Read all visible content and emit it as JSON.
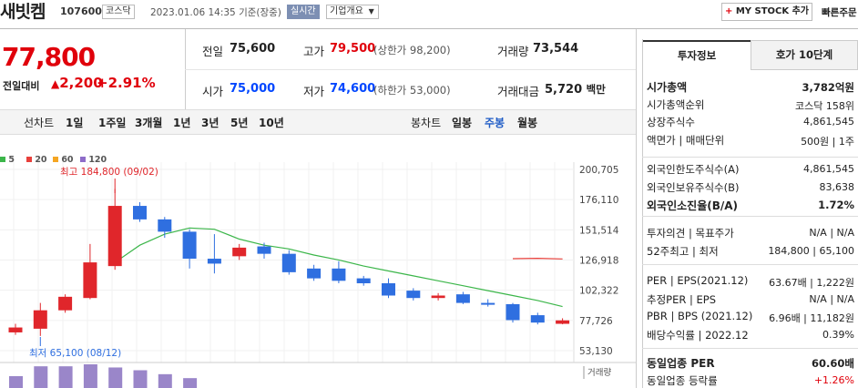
{
  "header": {
    "name": "새빗켐",
    "code": "107600",
    "market": "코스닥",
    "datetime": "2023.01.06 14:35",
    "basis": "기준(장중)",
    "live": "실시간",
    "overview": "기업개요",
    "mystock": "MY STOCK 추가",
    "quick": "빠른주문"
  },
  "price": {
    "current": "77,800",
    "change_label": "전일대비",
    "change": "2,200",
    "change_pct": "+2.91%"
  },
  "quote": {
    "prev_label": "전일",
    "prev": "75,600",
    "high_label": "고가",
    "high": "79,500",
    "upper_limit": "(상한가 98,200)",
    "volume_label": "거래량",
    "volume": "73,544",
    "open_label": "시가",
    "open": "75,000",
    "low_label": "저가",
    "low": "74,600",
    "lower_limit": "(하한가 53,000)",
    "amount_label": "거래대금",
    "amount": "5,720",
    "amount_unit": "백만"
  },
  "tabs": {
    "line_label": "선차트",
    "line": [
      "1일",
      "1주일",
      "3개월",
      "1년",
      "3년",
      "5년",
      "10년"
    ],
    "candle_label": "봉차트",
    "candle": [
      "일봉",
      "주봉",
      "월봉"
    ],
    "selected": "주봉"
  },
  "chart_data": {
    "type": "candlestick",
    "legend": [
      "5",
      "20",
      "60",
      "120"
    ],
    "legend_colors": [
      "#3cb64a",
      "#e8403b",
      "#f5a623",
      "#8e6cc9"
    ],
    "y_ticks": [
      "200,705",
      "176,110",
      "151,514",
      "126,918",
      "102,322",
      "77,726",
      "53,130"
    ],
    "ylim": [
      53130,
      200705
    ],
    "high_note": "최고 184,800 (09/02)",
    "low_note": "최저 65,100 (08/12)",
    "volume_label": "거래량",
    "candles": [
      {
        "o": 68000,
        "c": 72000,
        "h": 75000,
        "l": 66000
      },
      {
        "o": 71000,
        "c": 86000,
        "h": 92000,
        "l": 65100
      },
      {
        "o": 86000,
        "c": 97000,
        "h": 99000,
        "l": 84000
      },
      {
        "o": 96000,
        "c": 125000,
        "h": 140000,
        "l": 95000
      },
      {
        "o": 122000,
        "c": 171000,
        "h": 184800,
        "l": 119000
      },
      {
        "o": 171000,
        "c": 160000,
        "h": 174000,
        "l": 158000
      },
      {
        "o": 160000,
        "c": 150000,
        "h": 162000,
        "l": 145000
      },
      {
        "o": 150000,
        "c": 128000,
        "h": 152000,
        "l": 120000
      },
      {
        "o": 128000,
        "c": 124000,
        "h": 148000,
        "l": 116000
      },
      {
        "o": 130000,
        "c": 137000,
        "h": 140000,
        "l": 127000
      },
      {
        "o": 138000,
        "c": 132000,
        "h": 141000,
        "l": 128000
      },
      {
        "o": 132000,
        "c": 117000,
        "h": 135000,
        "l": 115000
      },
      {
        "o": 120000,
        "c": 112000,
        "h": 123000,
        "l": 110000
      },
      {
        "o": 120000,
        "c": 110000,
        "h": 126000,
        "l": 108000
      },
      {
        "o": 112000,
        "c": 108000,
        "h": 114000,
        "l": 106000
      },
      {
        "o": 108000,
        "c": 98000,
        "h": 112000,
        "l": 96000
      },
      {
        "o": 102000,
        "c": 96000,
        "h": 104000,
        "l": 94000
      },
      {
        "o": 96000,
        "c": 98000,
        "h": 100000,
        "l": 94000
      },
      {
        "o": 99000,
        "c": 92000,
        "h": 101000,
        "l": 91000
      },
      {
        "o": 92000,
        "c": 91000,
        "h": 95000,
        "l": 89000
      },
      {
        "o": 91000,
        "c": 78000,
        "h": 92000,
        "l": 76000
      },
      {
        "o": 82000,
        "c": 76000,
        "h": 84000,
        "l": 74500
      },
      {
        "o": 75000,
        "c": 77800,
        "h": 79500,
        "l": 74600
      }
    ],
    "ma5": [
      null,
      null,
      null,
      null,
      125000,
      139000,
      148000,
      153000,
      152000,
      144000,
      139000,
      136000,
      131000,
      127000,
      122000,
      118000,
      114000,
      110000,
      106000,
      102000,
      98000,
      94000,
      89000
    ],
    "ma20": [
      null,
      null,
      null,
      null,
      null,
      null,
      null,
      null,
      null,
      null,
      null,
      null,
      null,
      null,
      null,
      null,
      null,
      null,
      null,
      null,
      128000,
      128300,
      127800
    ],
    "volumes": [
      30,
      55,
      55,
      60,
      52,
      45,
      35,
      25
    ]
  },
  "info": {
    "tab_invest": "투자정보",
    "tab_ask": "호가 10단계",
    "rows1": [
      {
        "label": "시가총액",
        "value": "3,782억원"
      },
      {
        "label": "시가총액순위",
        "value": "코스닥 158위"
      },
      {
        "label": "상장주식수",
        "value": "4,861,545"
      },
      {
        "label": "액면가 | 매매단위",
        "value": "500원 | 1주"
      }
    ],
    "rows2": [
      {
        "label": "외국인한도주식수(A)",
        "value": "4,861,545"
      },
      {
        "label": "외국인보유주식수(B)",
        "value": "83,638"
      },
      {
        "label": "외국인소진율(B/A)",
        "value": "1.72%"
      }
    ],
    "rows3": [
      {
        "label": "투자의견 | 목표주가",
        "value": "N/A | N/A"
      },
      {
        "label": "52주최고 | 최저",
        "value": "184,800 | 65,100"
      }
    ],
    "rows4": [
      {
        "label": "PER | EPS(2021.12)",
        "value": "63.67배 | 1,222원"
      },
      {
        "label": "추정PER | EPS",
        "value": "N/A | N/A"
      },
      {
        "label": "PBR | BPS (2021.12)",
        "value": "6.96배 | 11,182원"
      },
      {
        "label": "배당수익률 | 2022.12",
        "value": "0.39%"
      }
    ],
    "rows5": [
      {
        "label": "동일업종 PER",
        "value": "60.60배"
      },
      {
        "label": "동일업종 등락률",
        "value": "+1.26%"
      }
    ]
  }
}
